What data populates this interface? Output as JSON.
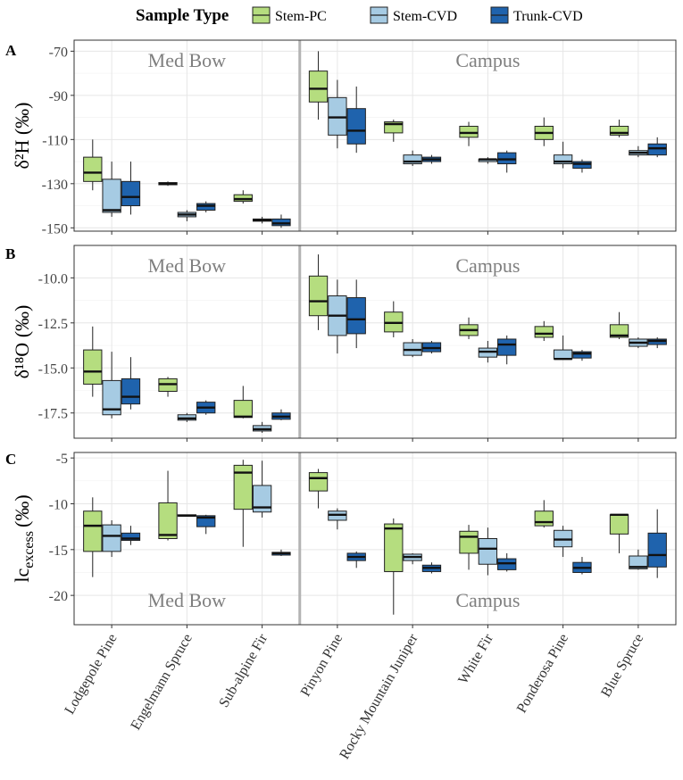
{
  "legend": {
    "title": "Sample Type",
    "items": [
      {
        "key": "stem_pc",
        "label": "Stem-PC",
        "color": "#b5dd7f"
      },
      {
        "key": "stem_cvd",
        "label": "Stem-CVD",
        "color": "#a6cbe3"
      },
      {
        "key": "trunk_cvd",
        "label": "Trunk-CVD",
        "color": "#1f63ad"
      }
    ]
  },
  "region_labels": {
    "left": "Med Bow",
    "right": "Campus"
  },
  "chart_data": {
    "type": "boxplot",
    "categories": [
      "Lodgepole Pine",
      "Engelmann Spruce",
      "Sub-alpine Fir",
      "Pinyon Pine",
      "Rocky Mountain Juniper",
      "White Fir",
      "Ponderosa Pine",
      "Blue Spruce"
    ],
    "series": [
      "Stem-PC",
      "Stem-CVD",
      "Trunk-CVD"
    ],
    "panels": [
      {
        "id": "A",
        "panel_label": "A",
        "ylabel": "δ²H (‰)",
        "ylim": [
          -151.5,
          -65
        ],
        "yticks": [
          -70,
          -90,
          -110,
          -130,
          -150
        ],
        "ytick_labels": [
          "-70",
          "-90",
          "-110",
          "-130",
          "-150"
        ],
        "region_label_position": "top",
        "boxes": [
          [
            [
              -133,
              -129,
              -125,
              -118,
              -110
            ],
            [
              -145,
              -143,
              -142,
              -128,
              -120
            ],
            [
              -144,
              -140,
              -136,
              -129,
              -120
            ]
          ],
          [
            [
              -131,
              -130.5,
              -130,
              -129.5,
              -129
            ],
            [
              -147,
              -145,
              -144,
              -143,
              -142
            ],
            [
              -143,
              -142,
              -140,
              -139,
              -138
            ]
          ],
          [
            [
              -139,
              -138,
              -137,
              -135,
              -133
            ],
            [
              -148,
              -147,
              -146.5,
              -146,
              -145
            ],
            [
              -150,
              -149,
              -148,
              -146,
              -144
            ]
          ],
          [
            [
              -101,
              -93,
              -87,
              -79,
              -70
            ],
            [
              -114,
              -108,
              -100,
              -91,
              -83
            ],
            [
              -116,
              -112,
              -106,
              -96,
              -86
            ]
          ],
          [
            [
              -111,
              -107,
              -103,
              -102,
              -101
            ],
            [
              -122,
              -121,
              -120,
              -117,
              -115
            ],
            [
              -121,
              -120,
              -119,
              -118,
              -117
            ]
          ],
          [
            [
              -113,
              -109,
              -107,
              -104,
              -102
            ],
            [
              -121,
              -120,
              -119,
              -119,
              -118
            ],
            [
              -125,
              -121,
              -119,
              -116,
              -115
            ]
          ],
          [
            [
              -113,
              -110,
              -107,
              -104,
              -100
            ],
            [
              -123,
              -121,
              -120,
              -117,
              -111
            ],
            [
              -125,
              -123,
              -121,
              -120,
              -119
            ]
          ],
          [
            [
              -109,
              -108,
              -107,
              -104,
              -101
            ],
            [
              -118,
              -117,
              -116,
              -115,
              -113
            ],
            [
              -118,
              -117,
              -114,
              -112,
              -109
            ]
          ]
        ]
      },
      {
        "id": "B",
        "panel_label": "B",
        "ylabel": "δ¹⁸O (‰)",
        "ylim": [
          -18.9,
          -8.2
        ],
        "yticks": [
          -10.0,
          -12.5,
          -15.0,
          -17.5
        ],
        "ytick_labels": [
          "-10.0",
          "-12.5",
          "-15.0",
          "-17.5"
        ],
        "region_label_position": "top",
        "boxes": [
          [
            [
              -16.6,
              -15.9,
              -15.2,
              -14.0,
              -12.7
            ],
            [
              -17.8,
              -17.6,
              -17.3,
              -15.7,
              -14.1
            ],
            [
              -17.3,
              -17.0,
              -16.6,
              -15.6,
              -14.4
            ]
          ],
          [
            [
              -16.6,
              -16.3,
              -15.9,
              -15.6,
              -15.5
            ],
            [
              -18.0,
              -17.9,
              -17.8,
              -17.6,
              -17.5
            ],
            [
              -17.6,
              -17.5,
              -17.2,
              -16.9,
              -16.8
            ]
          ],
          [
            [
              -17.8,
              -17.75,
              -17.7,
              -16.8,
              -16.0
            ],
            [
              -18.6,
              -18.5,
              -18.4,
              -18.2,
              -18.0
            ],
            [
              -17.9,
              -17.85,
              -17.7,
              -17.5,
              -17.3
            ]
          ],
          [
            [
              -12.9,
              -12.1,
              -11.3,
              -9.9,
              -8.7
            ],
            [
              -14.2,
              -13.2,
              -12.1,
              -11.0,
              -10.1
            ],
            [
              -13.9,
              -13.1,
              -12.3,
              -11.1,
              -10.1
            ]
          ],
          [
            [
              -13.3,
              -13.0,
              -12.5,
              -11.9,
              -11.3
            ],
            [
              -14.4,
              -14.3,
              -14.0,
              -13.6,
              -13.4
            ],
            [
              -14.2,
              -14.1,
              -13.9,
              -13.6,
              -13.5
            ]
          ],
          [
            [
              -13.4,
              -13.2,
              -12.9,
              -12.6,
              -12.2
            ],
            [
              -14.7,
              -14.4,
              -14.1,
              -13.9,
              -13.5
            ],
            [
              -14.8,
              -14.3,
              -13.7,
              -13.4,
              -13.2
            ]
          ],
          [
            [
              -13.5,
              -13.3,
              -13.1,
              -12.7,
              -12.4
            ],
            [
              -14.5,
              -14.5,
              -14.5,
              -14.0,
              -13.2
            ],
            [
              -14.6,
              -14.45,
              -14.2,
              -14.1,
              -14.0
            ]
          ],
          [
            [
              -13.4,
              -13.3,
              -13.2,
              -12.6,
              -11.9
            ],
            [
              -13.9,
              -13.8,
              -13.6,
              -13.4,
              -13.3
            ],
            [
              -13.9,
              -13.7,
              -13.5,
              -13.4,
              -13.3
            ]
          ]
        ]
      },
      {
        "id": "C",
        "panel_label": "C",
        "ylabel": "lc-excess (‰)",
        "ylabel_base": "lc",
        "ylabel_sub": "excess",
        "ylabel_unit": "(‰)",
        "ylim": [
          -23.2,
          -4.4
        ],
        "yticks": [
          -5,
          -10,
          -15,
          -20
        ],
        "ytick_labels": [
          "-5",
          "-10",
          "-15",
          "-20"
        ],
        "region_label_position": "bottom",
        "boxes": [
          [
            [
              -18.0,
              -15.2,
              -12.4,
              -10.8,
              -9.3
            ],
            [
              -15.8,
              -15.2,
              -13.5,
              -12.3,
              -11.8
            ],
            [
              -14.5,
              -14.0,
              -13.8,
              -13.2,
              -12.4
            ]
          ],
          [
            [
              -14.0,
              -13.8,
              -13.4,
              -9.9,
              -6.4
            ],
            [
              -11.3,
              -11.3,
              -11.3,
              -11.2,
              -11.2
            ],
            [
              -13.3,
              -12.5,
              -11.5,
              -11.3,
              -11.2
            ]
          ],
          [
            [
              -14.7,
              -10.6,
              -6.6,
              -5.8,
              -5.2
            ],
            [
              -11.5,
              -10.9,
              -10.4,
              -8.0,
              -5.3
            ],
            [
              -15.7,
              -15.6,
              -15.4,
              -15.3,
              -15.0
            ]
          ],
          [
            [
              -10.5,
              -8.6,
              -7.2,
              -6.6,
              -6.2
            ],
            [
              -12.8,
              -11.8,
              -11.2,
              -10.8,
              -10.5
            ],
            [
              -17.0,
              -16.2,
              -15.8,
              -15.4,
              -15.2
            ]
          ],
          [
            [
              -22.1,
              -17.4,
              -12.7,
              -12.2,
              -11.6
            ],
            [
              -16.6,
              -16.2,
              -15.8,
              -15.5,
              -15.4
            ],
            [
              -17.6,
              -17.4,
              -17.0,
              -16.7,
              -16.4
            ]
          ],
          [
            [
              -17.2,
              -15.4,
              -13.6,
              -13.0,
              -12.3
            ],
            [
              -17.8,
              -16.6,
              -14.9,
              -13.8,
              -12.6
            ],
            [
              -17.4,
              -17.2,
              -16.5,
              -16.0,
              -15.4
            ]
          ],
          [
            [
              -12.6,
              -12.4,
              -12.0,
              -10.8,
              -9.6
            ],
            [
              -15.8,
              -14.7,
              -13.9,
              -12.9,
              -12.4
            ],
            [
              -17.7,
              -17.5,
              -17.0,
              -16.4,
              -15.8
            ]
          ],
          [
            [
              -15.4,
              -13.3,
              -11.2,
              -11.2,
              -11.2
            ],
            [
              -17.2,
              -17.1,
              -16.9,
              -15.7,
              -15.0
            ],
            [
              -18.1,
              -16.9,
              -15.6,
              -13.2,
              -10.6
            ]
          ]
        ]
      }
    ]
  }
}
